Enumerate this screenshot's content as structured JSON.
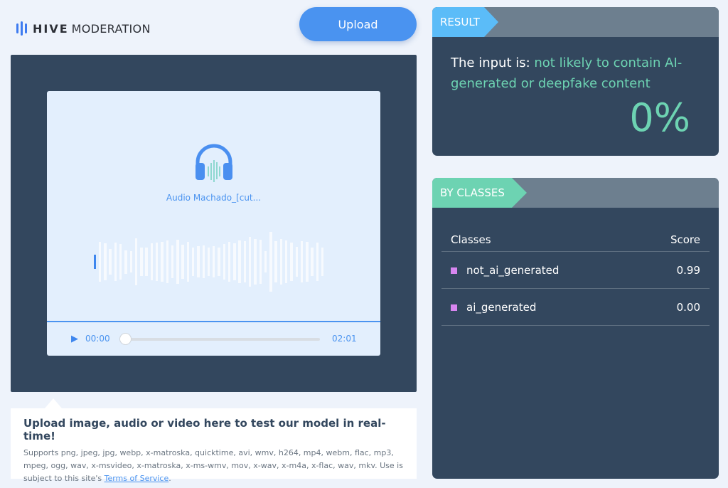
{
  "brand": {
    "name_bold": "HIVE",
    "name_light": "MODERATION",
    "accent": "#3e7bf0"
  },
  "toolbar": {
    "upload_label": "Upload"
  },
  "player": {
    "filename": "Audio Machado_[cut...",
    "current_time": "00:00",
    "duration": "02:01",
    "progress": 0,
    "icon": "headphones-icon",
    "play_icon": "play-icon"
  },
  "info": {
    "title": "Upload image, audio or video here to test our model in real-time!",
    "supports": "Supports png, jpeg, jpg, webp, x-matroska, quicktime, avi, wmv, h264, mp4, webm, flac, mp3, mpeg, ogg, wav, x-msvideo, x-matroska, x-ms-wmv, mov, x-wav, x-m4a, x-flac, wav, mkv. Use is subject to this site's ",
    "tos_link": "Terms of Service",
    "tos_end": "."
  },
  "result": {
    "tag": "RESULT",
    "prefix": "The input is: ",
    "verdict": "not likely to contain AI-generated or deepfake content",
    "percent": "0%",
    "color": "#6dd3b2"
  },
  "classes": {
    "tag": "BY CLASSES",
    "col_class": "Classes",
    "col_score": "Score",
    "rows": [
      {
        "name": "not_ai_generated",
        "score": "0.99",
        "color": "#d786f0"
      },
      {
        "name": "ai_generated",
        "score": "0.00",
        "color": "#d786f0"
      }
    ]
  }
}
